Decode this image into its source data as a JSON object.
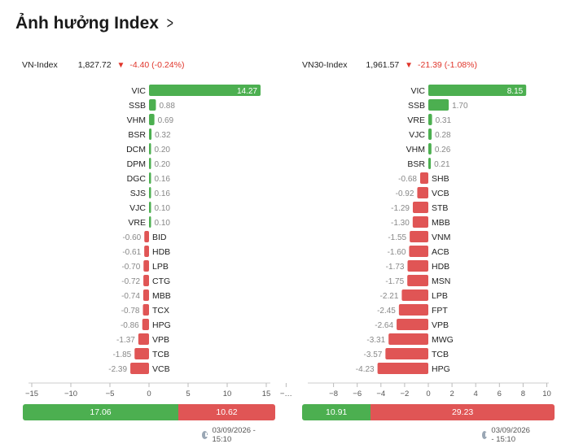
{
  "page": {
    "title": "Ảnh hưởng Index"
  },
  "colors": {
    "positive": "#4caf50",
    "negative": "#e05555",
    "down_text": "#e0352b"
  },
  "chart_data": [
    {
      "type": "bar",
      "orientation": "horizontal",
      "index_name": "VN-Index",
      "index_value": "1,827.72",
      "index_change": "-4.40 (-0.24%)",
      "categories": [
        "VIC",
        "SSB",
        "VHM",
        "BSR",
        "DCM",
        "DPM",
        "DGC",
        "SJS",
        "VJC",
        "VRE",
        "BID",
        "HDB",
        "LPB",
        "CTG",
        "MBB",
        "TCX",
        "HPG",
        "VPB",
        "TCB",
        "VCB"
      ],
      "values": [
        14.27,
        0.88,
        0.69,
        0.32,
        0.2,
        0.2,
        0.16,
        0.16,
        0.1,
        0.1,
        -0.6,
        -0.61,
        -0.7,
        -0.72,
        -0.74,
        -0.78,
        -0.86,
        -1.37,
        -1.85,
        -2.39
      ],
      "xlim": [
        -15,
        15
      ],
      "xticks": [
        -15,
        -10,
        -5,
        0,
        5,
        10,
        15
      ],
      "xtick_labels": [
        "−15",
        "−10",
        "−5",
        "0",
        "5",
        "10",
        "15"
      ],
      "summary_positive": "17.06",
      "summary_negative": "10.62",
      "summary_positive_value": 17.06,
      "summary_negative_value": 10.62,
      "timestamp": "03/09/2026 - 15:10"
    },
    {
      "type": "bar",
      "orientation": "horizontal",
      "index_name": "VN30-Index",
      "index_value": "1,961.57",
      "index_change": "-21.39 (-1.08%)",
      "categories": [
        "VIC",
        "SSB",
        "VRE",
        "VJC",
        "VHM",
        "BSR",
        "SHB",
        "VCB",
        "STB",
        "MBB",
        "VNM",
        "ACB",
        "HDB",
        "MSN",
        "LPB",
        "FPT",
        "VPB",
        "MWG",
        "TCB",
        "HPG"
      ],
      "values": [
        8.15,
        1.7,
        0.31,
        0.28,
        0.26,
        0.21,
        -0.68,
        -0.92,
        -1.29,
        -1.3,
        -1.55,
        -1.6,
        -1.73,
        -1.75,
        -2.21,
        -2.45,
        -2.64,
        -3.31,
        -3.57,
        -4.23
      ],
      "xlim": [
        -12,
        10
      ],
      "xticks": [
        -12,
        -8,
        -6,
        -4,
        -2,
        0,
        2,
        4,
        6,
        8,
        10
      ],
      "xtick_labels": [
        "−…",
        "−8",
        "−6",
        "−4",
        "−2",
        "0",
        "2",
        "4",
        "6",
        "8",
        "10"
      ],
      "summary_positive": "10.91",
      "summary_negative": "29.23",
      "summary_positive_value": 10.91,
      "summary_negative_value": 29.23,
      "timestamp": "03/09/2026 - 15:10"
    }
  ]
}
